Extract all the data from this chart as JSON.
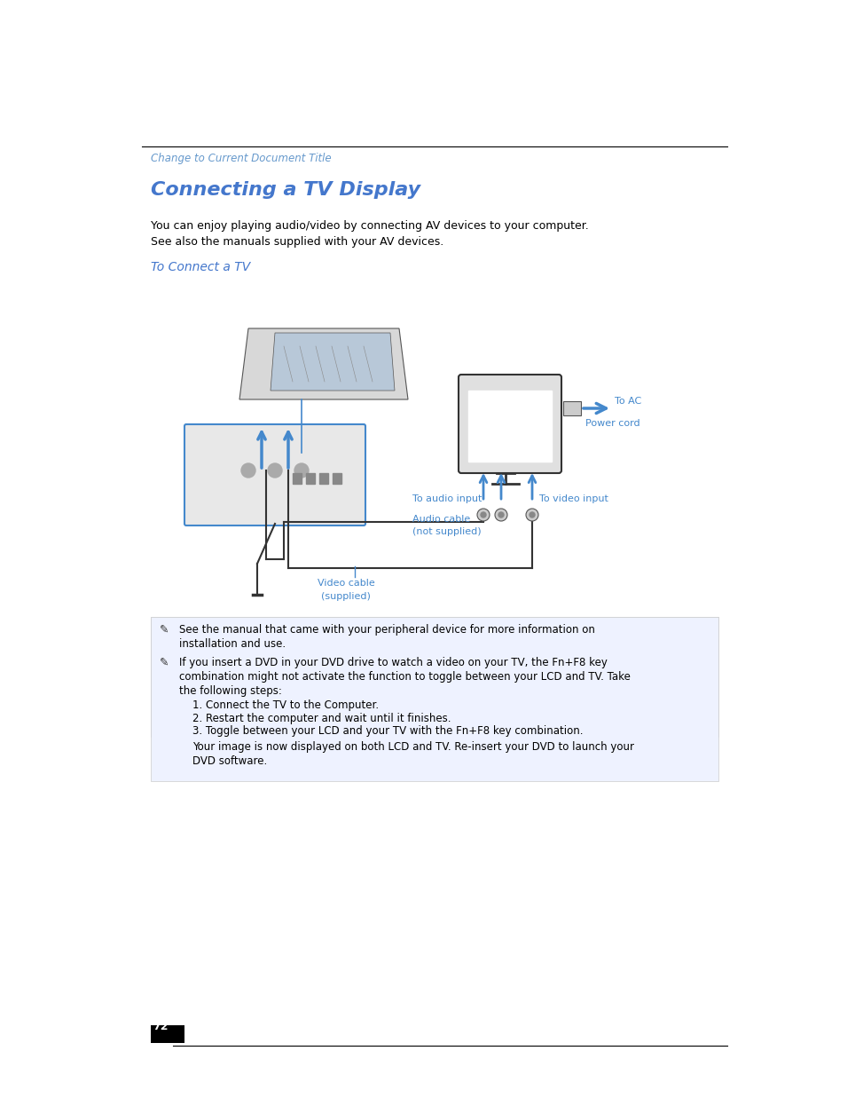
{
  "bg_color": "#ffffff",
  "header_line_color": "#000000",
  "header_text": "Change to Current Document Title",
  "header_text_color": "#6699cc",
  "title": "Connecting a TV Display",
  "title_color": "#4477cc",
  "subtitle": "To Connect a TV",
  "subtitle_color": "#4477cc",
  "body_text_line1": "You can enjoy playing audio/video by connecting AV devices to your computer.",
  "body_text_line2": "See also the manuals supplied with your AV devices.",
  "note_bg_color": "#eef2ff",
  "note1_line1": "✒  See the manual that came with your peripheral device for more information on",
  "note1_line2": "    installation and use.",
  "note2_line1": "✒  If you insert a DVD in your DVD drive to watch a video on your TV, the Fn+F8 key",
  "note2_line2": "    combination might not activate the function to toggle between your LCD and TV. Take",
  "note2_line3": "    the following steps:",
  "step1": "    1. Connect the TV to the Computer.",
  "step2": "    2. Restart the computer and wait until it finishes.",
  "step3": "    3. Toggle between your LCD and your TV with the Fn+F8 key combination.",
  "final_text_line1": "    Your image is now displayed on both LCD and TV. Re-insert your DVD to launch your",
  "final_text_line2": "    DVD software.",
  "page_number": "72",
  "arrow_color": "#4488cc",
  "diagram_line_color": "#333333",
  "label_color": "#4488cc"
}
